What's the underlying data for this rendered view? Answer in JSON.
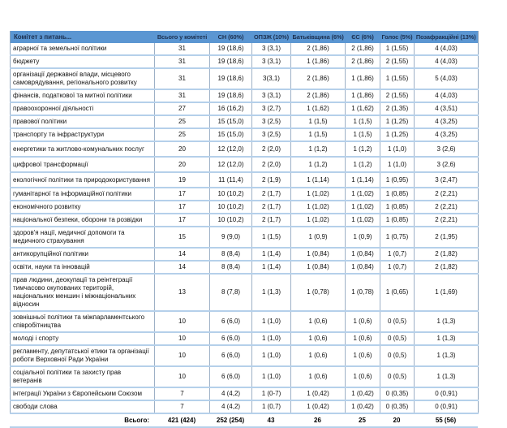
{
  "table": {
    "title_column": "Комітет з питань...",
    "columns": [
      "Всього у комітеті",
      "СН (60%)",
      "ОПЗЖ (10%)",
      "Батьківщина (6%)",
      "ЄС (6%)",
      "Голос (5%)",
      "Позафракційні (13%)"
    ],
    "rows": [
      {
        "committee": "аграрної та земельної політики",
        "values": [
          "31",
          "19 (18,6)",
          "3 (3,1)",
          "2 (1,86)",
          "2 (1,86)",
          "1 (1,55)",
          "4 (4,03)"
        ]
      },
      {
        "committee": "бюджету",
        "values": [
          "31",
          "19 (18,6)",
          "3 (3,1)",
          "1 (1,86)",
          "2 (1,86)",
          "2 (1,55)",
          "4 (4,03)"
        ]
      },
      {
        "committee": "організації державної влади, місцевого самоврядування, регіонального розвитку",
        "values": [
          "31",
          "19 (18,6)",
          "3(3,1)",
          "2 (1,86)",
          "1 (1,86)",
          "1 (1,55)",
          "5 (4,03)"
        ]
      },
      {
        "committee": "фінансів, податкової та митної політики",
        "values": [
          "31",
          "19 (18,6)",
          "3 (3,1)",
          "2 (1,86)",
          "1 (1,86)",
          "2 (1,55)",
          "4 (4,03)"
        ]
      },
      {
        "committee": "правоохоронної діяльності",
        "values": [
          "27",
          "16 (16,2)",
          "3 (2,7)",
          "1 (1,62)",
          "1 (1,62)",
          "2 (1,35)",
          "4 (3,51)"
        ]
      },
      {
        "committee": "правової політики",
        "values": [
          "25",
          "15 (15,0)",
          "3 (2,5)",
          "1 (1,5)",
          "1 (1,5)",
          "1 (1,25)",
          "4 (3,25)"
        ]
      },
      {
        "committee": "транспорту та інфраструктури",
        "values": [
          "25",
          "15 (15,0)",
          "3 (2,5)",
          "1 (1,5)",
          "1 (1,5)",
          "1 (1,25)",
          "4 (3,25)"
        ]
      },
      {
        "committee": "енергетики та житлово-комунальних послуг",
        "values": [
          "20",
          "12 (12,0)",
          "2 (2,0)",
          "1 (1,2)",
          "1 (1,2)",
          "1 (1,0)",
          "3 (2,6)"
        ]
      },
      {
        "committee": "цифрової трансформації",
        "values": [
          "20",
          "12 (12,0)",
          "2 (2,0)",
          "1 (1,2)",
          "1 (1,2)",
          "1 (1,0)",
          "3 (2,6)"
        ]
      },
      {
        "committee": "екологічної політики та природокористування",
        "values": [
          "19",
          "11 (11,4)",
          "2 (1,9)",
          "1 (1,14)",
          "1 (1,14)",
          "1 (0,95)",
          "3 (2,47)"
        ]
      },
      {
        "committee": "гуманітарної та інформаційної політики",
        "values": [
          "17",
          "10 (10,2)",
          "2 (1,7)",
          "1 (1,02)",
          "1 (1,02)",
          "1 (0,85)",
          "2 (2,21)"
        ]
      },
      {
        "committee": "економічного розвитку",
        "values": [
          "17",
          "10 (10,2)",
          "2 (1,7)",
          "1 (1,02)",
          "1 (1,02)",
          "1 (0,85)",
          "2 (2,21)"
        ]
      },
      {
        "committee": "національної безпеки, оборони та розвідки",
        "values": [
          "17",
          "10 (10,2)",
          "2 (1,7)",
          "1 (1,02)",
          "1 (1,02)",
          "1 (0,85)",
          "2 (2,21)"
        ]
      },
      {
        "committee": "здоров'я нації, медичної допомоги та медичного страхування",
        "values": [
          "15",
          "9 (9,0)",
          "1 (1,5)",
          "1 (0,9)",
          "1 (0,9)",
          "1 (0,75)",
          "2 (1,95)"
        ]
      },
      {
        "committee": "антикорупційної політики",
        "values": [
          "14",
          "8 (8,4)",
          "1 (1,4)",
          "1 (0,84)",
          "1 (0,84)",
          "1 (0,7)",
          "2 (1,82)"
        ]
      },
      {
        "committee": "освіти, науки та інновацій",
        "values": [
          "14",
          "8 (8,4)",
          "1 (1,4)",
          "1 (0,84)",
          "1 (0,84)",
          "1 (0,7)",
          "2 (1,82)"
        ]
      },
      {
        "committee": "прав людини, деокупації та реінтеграції тимчасово окупованих територій, національних меншин і міжнаціональних відносин",
        "values": [
          "13",
          "8 (7,8)",
          "1 (1,3)",
          "1 (0,78)",
          "1 (0,78)",
          "1 (0,65)",
          "1 (1,69)"
        ]
      },
      {
        "committee": "зовнішньої політики та міжпарламентського співробітництва",
        "values": [
          "10",
          "6 (6,0)",
          "1 (1,0)",
          "1 (0,6)",
          "1 (0,6)",
          "0 (0,5)",
          "1 (1,3)"
        ]
      },
      {
        "committee": "молоді і спорту",
        "values": [
          "10",
          "6 (6,0)",
          "1 (1,0)",
          "1 (0,6)",
          "1 (0,6)",
          "0 (0,5)",
          "1 (1,3)"
        ]
      },
      {
        "committee": "регламенту, депутатської етики та організації роботи Верховної Ради України",
        "values": [
          "10",
          "6 (6,0)",
          "1 (1,0)",
          "1 (0,6)",
          "1 (0,6)",
          "0 (0,5)",
          "1 (1,3)"
        ]
      },
      {
        "committee": "соціальної політики та захисту прав ветеранів",
        "values": [
          "10",
          "6 (6,0)",
          "1 (1,0)",
          "1 (0,6)",
          "1 (0,6)",
          "0 (0,5)",
          "1 (1,3)"
        ]
      },
      {
        "committee": "інтеграції України з Європейським Союзом",
        "values": [
          "7",
          "4 (4,2)",
          "1 (0-7)",
          "1 (0,42)",
          "1 (0,42)",
          "0 (0,35)",
          "0 (0,91)"
        ]
      },
      {
        "committee": "свободи слова",
        "values": [
          "7",
          "4 (4,2)",
          "1 (0,7)",
          "1 (0,42)",
          "1 (0,42)",
          "0 (0,35)",
          "0 (0,91)"
        ]
      }
    ],
    "total": {
      "label": "Всього:",
      "values": [
        "421 (424)",
        "252 (254)",
        "43",
        "26",
        "25",
        "20",
        "55 (56)"
      ]
    },
    "colors": {
      "header_bg": "#5b96d2",
      "header_text": "#1c3050",
      "row_border": "#b5d0ea",
      "column_border": "#9db0c6"
    }
  }
}
